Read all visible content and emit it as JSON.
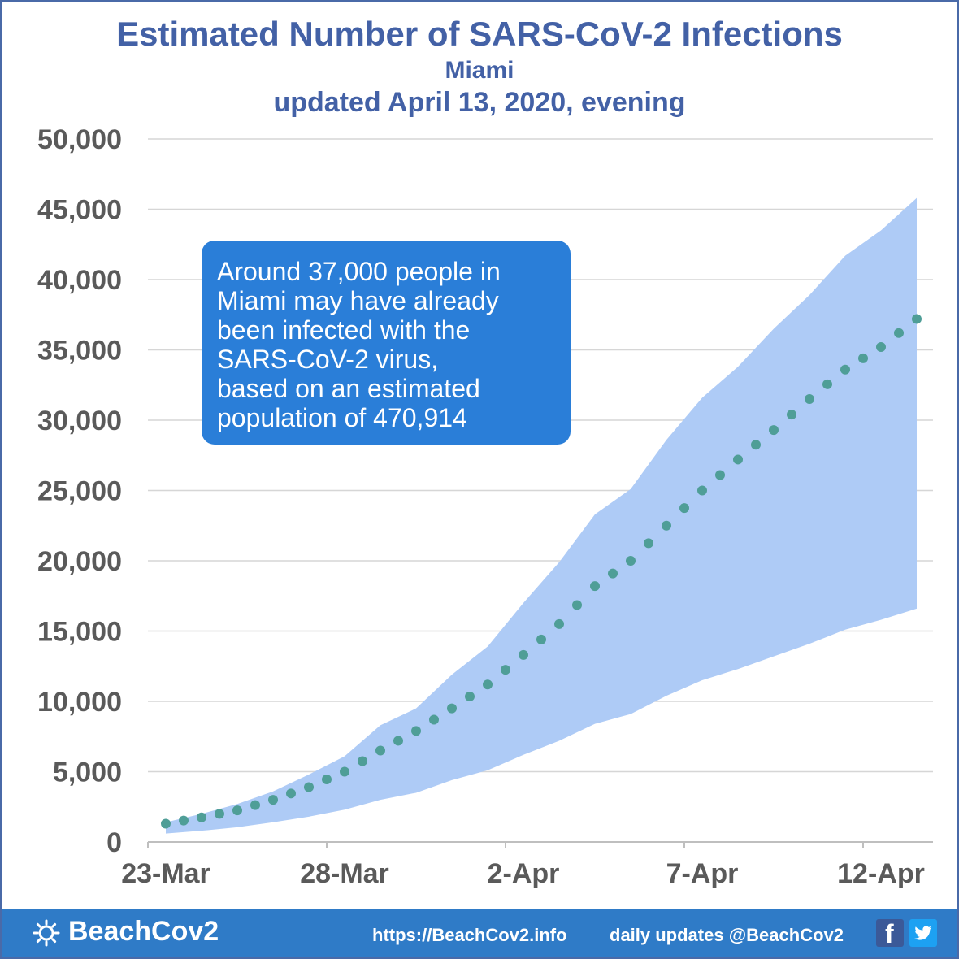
{
  "header": {
    "title": "Estimated Number of SARS-CoV-2 Infections",
    "location": "Miami",
    "updated": "updated April 13, 2020, evening"
  },
  "callout": {
    "lines": [
      "Around 37,000 people in",
      "Miami may have already",
      "been infected with the",
      "SARS-CoV-2 virus,",
      "based on an estimated",
      "population of 470,914"
    ]
  },
  "footer": {
    "brand": "BeachCov2",
    "url": "https://BeachCov2.info",
    "daily": "daily updates @BeachCov2",
    "icons": [
      "sun-icon",
      "facebook-icon",
      "twitter-icon"
    ]
  },
  "colors": {
    "title": "#4361a6",
    "band": "#aecbf6",
    "dots": "#4f9e97",
    "callout": "#2a7ed8",
    "footer": "#2f7bc7",
    "grid": "#d6d6d6"
  },
  "chart_data": {
    "type": "area",
    "x": [
      "23-Mar",
      "24-Mar",
      "25-Mar",
      "26-Mar",
      "27-Mar",
      "28-Mar",
      "29-Mar",
      "30-Mar",
      "31-Mar",
      "1-Apr",
      "2-Apr",
      "3-Apr",
      "4-Apr",
      "5-Apr",
      "6-Apr",
      "7-Apr",
      "8-Apr",
      "9-Apr",
      "10-Apr",
      "11-Apr",
      "12-Apr",
      "13-Apr"
    ],
    "xticks": [
      "23-Mar",
      "28-Mar",
      "2-Apr",
      "7-Apr",
      "12-Apr"
    ],
    "ylim": [
      0,
      50000
    ],
    "yticks": [
      "0",
      "5,000",
      "10,000",
      "15,000",
      "20,000",
      "25,000",
      "30,000",
      "35,000",
      "40,000",
      "45,000",
      "50,000"
    ],
    "grid": true,
    "series": [
      {
        "style": "band-upper",
        "values": [
          1400,
          2000,
          2700,
          3600,
          4800,
          6100,
          8300,
          9500,
          11900,
          13900,
          17000,
          19900,
          23300,
          25100,
          28600,
          31600,
          33800,
          36500,
          38900,
          41700,
          43500,
          45800
        ]
      },
      {
        "style": "band-lower",
        "values": [
          600,
          800,
          1050,
          1400,
          1800,
          2300,
          3000,
          3500,
          4400,
          5100,
          6200,
          7200,
          8400,
          9100,
          10400,
          11500,
          12300,
          13200,
          14100,
          15100,
          15800,
          16600
        ]
      },
      {
        "style": "dotted-estimate",
        "values": [
          1300,
          1750,
          2250,
          3000,
          3900,
          5000,
          6500,
          7900,
          9500,
          11200,
          13300,
          15500,
          18200,
          20000,
          22500,
          25000,
          27200,
          29300,
          31500,
          33600,
          35200,
          37200
        ]
      }
    ]
  }
}
